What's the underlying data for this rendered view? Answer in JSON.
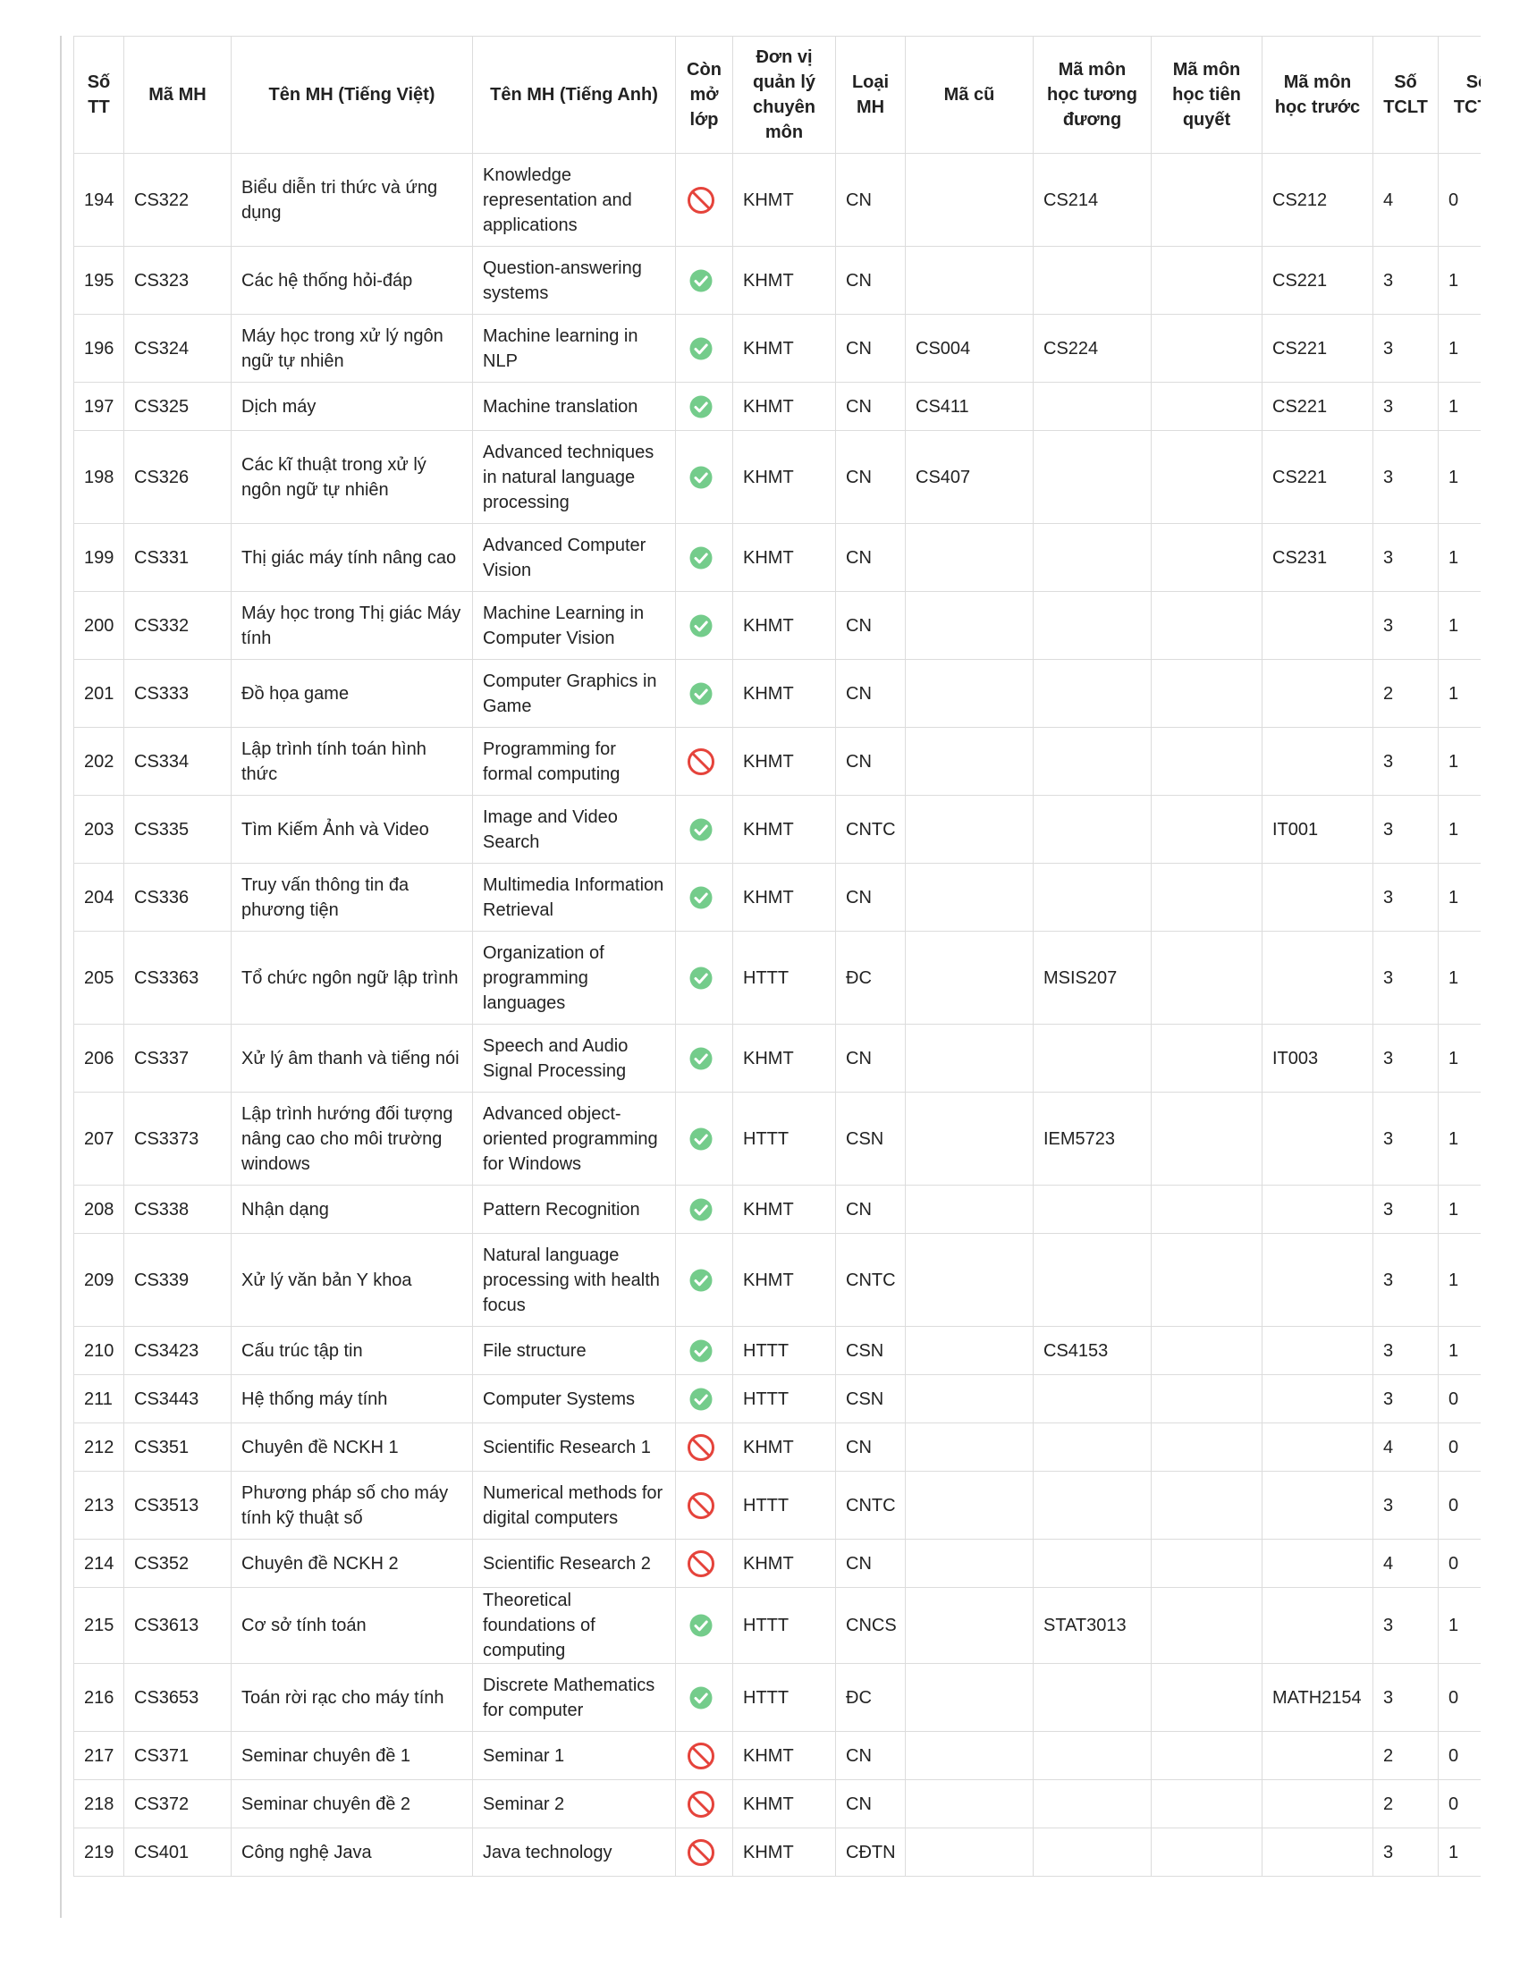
{
  "colors": {
    "ok": "#5cc377",
    "no": "#e5433b",
    "border": "#dcdcdc"
  },
  "headers": {
    "stt": "Số TT",
    "ma_mh": "Mã MH",
    "ten_vi": "Tên MH (Tiếng Việt)",
    "ten_en": "Tên MH (Tiếng Anh)",
    "con_mo_lop": "Còn mở lớp",
    "don_vi": "Đơn vị quản lý chuyên môn",
    "loai": "Loại MH",
    "ma_cu": "Mã cũ",
    "tuong_duong": "Mã môn học tương đương",
    "tien_quyet": "Mã môn học tiên quyết",
    "hoc_truoc": "Mã môn học trước",
    "tclt": "Số TCLT",
    "tcth": "Số TCTH"
  },
  "rows": [
    {
      "stt": "194",
      "ma": "CS322",
      "vi": "Biểu diễn tri thức và ứng dụng",
      "en": "Knowledge representation and applications",
      "open": "no-entry-icon",
      "dv": "KHMT",
      "loai": "CN",
      "macu": "",
      "td": "CS214",
      "tq": "",
      "ht": "CS212",
      "tclt": "4",
      "tcth": "0"
    },
    {
      "stt": "195",
      "ma": "CS323",
      "vi": "Các hệ thống hỏi-đáp",
      "en": "Question-answering systems",
      "open": "check-circle-icon",
      "dv": "KHMT",
      "loai": "CN",
      "macu": "",
      "td": "",
      "tq": "",
      "ht": "CS221",
      "tclt": "3",
      "tcth": "1"
    },
    {
      "stt": "196",
      "ma": "CS324",
      "vi": "Máy học trong xử lý ngôn ngữ tự nhiên",
      "en": "Machine learning in NLP",
      "open": "check-circle-icon",
      "dv": "KHMT",
      "loai": "CN",
      "macu": "CS004",
      "td": "CS224",
      "tq": "",
      "ht": "CS221",
      "tclt": "3",
      "tcth": "1"
    },
    {
      "stt": "197",
      "ma": "CS325",
      "vi": "Dịch máy",
      "en": "Machine translation",
      "open": "check-circle-icon",
      "dv": "KHMT",
      "loai": "CN",
      "macu": "CS411",
      "td": "",
      "tq": "",
      "ht": "CS221",
      "tclt": "3",
      "tcth": "1"
    },
    {
      "stt": "198",
      "ma": "CS326",
      "vi": "Các kĩ thuật trong xử lý ngôn ngữ tự nhiên",
      "en": "Advanced techniques in natural language processing",
      "open": "check-circle-icon",
      "dv": "KHMT",
      "loai": "CN",
      "macu": "CS407",
      "td": "",
      "tq": "",
      "ht": "CS221",
      "tclt": "3",
      "tcth": "1"
    },
    {
      "stt": "199",
      "ma": "CS331",
      "vi": "Thị giác máy tính nâng cao",
      "en": "Advanced Computer Vision",
      "open": "check-circle-icon",
      "dv": "KHMT",
      "loai": "CN",
      "macu": "",
      "td": "",
      "tq": "",
      "ht": "CS231",
      "tclt": "3",
      "tcth": "1"
    },
    {
      "stt": "200",
      "ma": "CS332",
      "vi": "Máy học trong Thị giác Máy tính",
      "en": "Machine Learning in Computer Vision",
      "open": "check-circle-icon",
      "dv": "KHMT",
      "loai": "CN",
      "macu": "",
      "td": "",
      "tq": "",
      "ht": "",
      "tclt": "3",
      "tcth": "1"
    },
    {
      "stt": "201",
      "ma": "CS333",
      "vi": "Đồ họa game",
      "en": "Computer Graphics in Game",
      "open": "check-circle-icon",
      "dv": "KHMT",
      "loai": "CN",
      "macu": "",
      "td": "",
      "tq": "",
      "ht": "",
      "tclt": "2",
      "tcth": "1"
    },
    {
      "stt": "202",
      "ma": "CS334",
      "vi": "Lập trình tính toán hình thức",
      "en": "Programming for formal computing",
      "open": "no-entry-icon",
      "dv": "KHMT",
      "loai": "CN",
      "macu": "",
      "td": "",
      "tq": "",
      "ht": "",
      "tclt": "3",
      "tcth": "1"
    },
    {
      "stt": "203",
      "ma": "CS335",
      "vi": "Tìm Kiếm Ảnh và Video",
      "en": "Image and Video Search",
      "open": "check-circle-icon",
      "dv": "KHMT",
      "loai": "CNTC",
      "macu": "",
      "td": "",
      "tq": "",
      "ht": "IT001",
      "tclt": "3",
      "tcth": "1"
    },
    {
      "stt": "204",
      "ma": "CS336",
      "vi": "Truy vấn thông tin đa phương tiện",
      "en": "Multimedia Information Retrieval",
      "open": "check-circle-icon",
      "dv": "KHMT",
      "loai": "CN",
      "macu": "",
      "td": "",
      "tq": "",
      "ht": "",
      "tclt": "3",
      "tcth": "1"
    },
    {
      "stt": "205",
      "ma": "CS3363",
      "vi": "Tổ chức ngôn ngữ lập trình",
      "en": "Organization of programming languages",
      "open": "check-circle-icon",
      "dv": "HTTT",
      "loai": "ĐC",
      "macu": "",
      "td": "MSIS207",
      "tq": "",
      "ht": "",
      "tclt": "3",
      "tcth": "1"
    },
    {
      "stt": "206",
      "ma": "CS337",
      "vi": "Xử lý âm thanh và tiếng nói",
      "en": "Speech and Audio Signal Processing",
      "open": "check-circle-icon",
      "dv": "KHMT",
      "loai": "CN",
      "macu": "",
      "td": "",
      "tq": "",
      "ht": "IT003",
      "tclt": "3",
      "tcth": "1"
    },
    {
      "stt": "207",
      "ma": "CS3373",
      "vi": "Lập trình hướng đối tượng nâng cao cho môi trường windows",
      "en": "Advanced object-oriented programming for Windows",
      "open": "check-circle-icon",
      "dv": "HTTT",
      "loai": "CSN",
      "macu": "",
      "td": "IEM5723",
      "tq": "",
      "ht": "",
      "tclt": "3",
      "tcth": "1"
    },
    {
      "stt": "208",
      "ma": "CS338",
      "vi": "Nhận dạng",
      "en": "Pattern Recognition",
      "open": "check-circle-icon",
      "dv": "KHMT",
      "loai": "CN",
      "macu": "",
      "td": "",
      "tq": "",
      "ht": "",
      "tclt": "3",
      "tcth": "1"
    },
    {
      "stt": "209",
      "ma": "CS339",
      "vi": "Xử lý văn bản Y khoa",
      "en": "Natural language processing with health focus",
      "open": "check-circle-icon",
      "dv": "KHMT",
      "loai": "CNTC",
      "macu": "",
      "td": "",
      "tq": "",
      "ht": "",
      "tclt": "3",
      "tcth": "1"
    },
    {
      "stt": "210",
      "ma": "CS3423",
      "vi": "Cấu trúc tập tin",
      "en": "File structure",
      "open": "check-circle-icon",
      "dv": "HTTT",
      "loai": "CSN",
      "macu": "",
      "td": "CS4153",
      "tq": "",
      "ht": "",
      "tclt": "3",
      "tcth": "1"
    },
    {
      "stt": "211",
      "ma": "CS3443",
      "vi": "Hệ thống máy tính",
      "en": "Computer Systems",
      "open": "check-circle-icon",
      "dv": "HTTT",
      "loai": "CSN",
      "macu": "",
      "td": "",
      "tq": "",
      "ht": "",
      "tclt": "3",
      "tcth": "0"
    },
    {
      "stt": "212",
      "ma": "CS351",
      "vi": "Chuyên đề NCKH 1",
      "en": "Scientific Research 1",
      "open": "no-entry-icon",
      "dv": "KHMT",
      "loai": "CN",
      "macu": "",
      "td": "",
      "tq": "",
      "ht": "",
      "tclt": "4",
      "tcth": "0"
    },
    {
      "stt": "213",
      "ma": "CS3513",
      "vi": "Phương pháp số cho máy tính kỹ thuật số",
      "en": "Numerical methods for digital computers",
      "open": "no-entry-icon",
      "dv": "HTTT",
      "loai": "CNTC",
      "macu": "",
      "td": "",
      "tq": "",
      "ht": "",
      "tclt": "3",
      "tcth": "0"
    },
    {
      "stt": "214",
      "ma": "CS352",
      "vi": "Chuyên đề NCKH 2",
      "en": "Scientific Research 2",
      "open": "no-entry-icon",
      "dv": "KHMT",
      "loai": "CN",
      "macu": "",
      "td": "",
      "tq": "",
      "ht": "",
      "tclt": "4",
      "tcth": "0"
    },
    {
      "stt": "215",
      "ma": "CS3613",
      "vi": "Cơ sở tính toán",
      "en": "Theoretical foundations of computing",
      "open": "check-circle-icon",
      "dv": "HTTT",
      "loai": "CNCS",
      "macu": "",
      "td": "STAT3013",
      "tq": "",
      "ht": "",
      "tclt": "3",
      "tcth": "1"
    },
    {
      "stt": "216",
      "ma": "CS3653",
      "vi": "Toán rời rạc cho máy tính",
      "en": "Discrete Mathematics for computer",
      "open": "check-circle-icon",
      "dv": "HTTT",
      "loai": "ĐC",
      "macu": "",
      "td": "",
      "tq": "",
      "ht": "MATH2154",
      "tclt": "3",
      "tcth": "0"
    },
    {
      "stt": "217",
      "ma": "CS371",
      "vi": "Seminar chuyên đề 1",
      "en": "Seminar 1",
      "open": "no-entry-icon",
      "dv": "KHMT",
      "loai": "CN",
      "macu": "",
      "td": "",
      "tq": "",
      "ht": "",
      "tclt": "2",
      "tcth": "0"
    },
    {
      "stt": "218",
      "ma": "CS372",
      "vi": "Seminar chuyên đề 2",
      "en": "Seminar 2",
      "open": "no-entry-icon",
      "dv": "KHMT",
      "loai": "CN",
      "macu": "",
      "td": "",
      "tq": "",
      "ht": "",
      "tclt": "2",
      "tcth": "0"
    },
    {
      "stt": "219",
      "ma": "CS401",
      "vi": "Công nghệ Java",
      "en": "Java technology",
      "open": "no-entry-icon",
      "dv": "KHMT",
      "loai": "CĐTN",
      "macu": "",
      "td": "",
      "tq": "",
      "ht": "",
      "tclt": "3",
      "tcth": "1"
    }
  ]
}
